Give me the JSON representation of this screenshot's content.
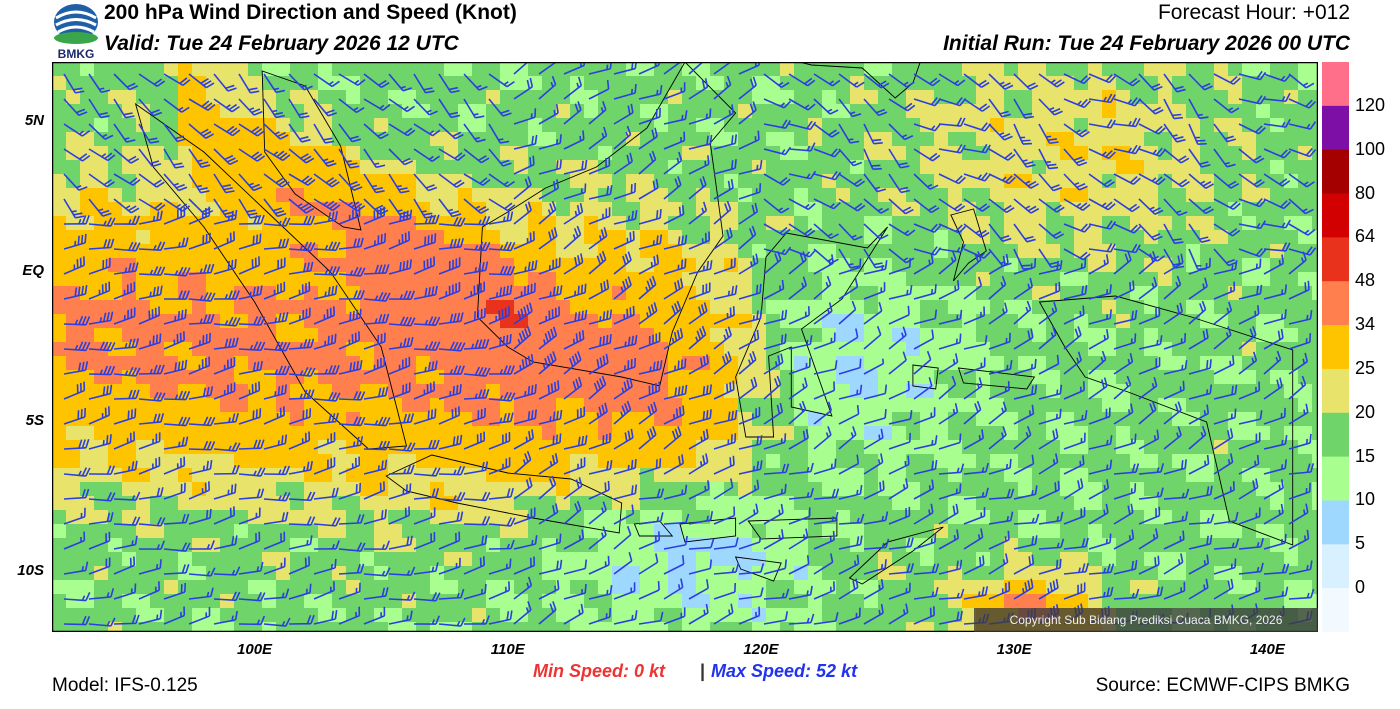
{
  "header": {
    "title": "200 hPa Wind Direction and Speed (Knot)",
    "valid": "Valid: Tue 24 February 2026 12 UTC",
    "forecast_hour": "Forecast Hour: +012",
    "initial_run": "Initial Run: Tue 24 February 2026 00 UTC"
  },
  "logo": {
    "text": "BMKG",
    "icon": "bmkg-logo-icon"
  },
  "map": {
    "lat_labels": [
      "5N",
      "EQ",
      "5S",
      "10S"
    ],
    "lat_values": [
      5,
      0,
      -5,
      -10
    ],
    "lon_labels": [
      "100E",
      "110E",
      "120E",
      "130E",
      "140E"
    ],
    "lon_values": [
      100,
      110,
      120,
      130,
      140
    ],
    "lon_range": [
      92,
      142
    ],
    "lat_range": [
      -12,
      7
    ],
    "copyright": "Copyright Sub Bidang Prediksi Cuaca BMKG, 2026",
    "barb_color": "#2b3fe0",
    "coast_color": "#000000"
  },
  "colorbar": {
    "labels": [
      "120",
      "100",
      "80",
      "64",
      "48",
      "34",
      "25",
      "20",
      "15",
      "10",
      "5",
      "0"
    ],
    "colors": [
      "#ff6f8a",
      "#7d0fa6",
      "#a50000",
      "#d20000",
      "#e8321c",
      "#ff7f4f",
      "#ffc400",
      "#e8e36a",
      "#6fd46a",
      "#a8ff8f",
      "#9fd8ff",
      "#d8f0ff",
      "#f2f9ff"
    ]
  },
  "footer": {
    "min_speed": "Min Speed:   0 kt",
    "max_speed": "Max Speed:  52 kt",
    "separator": "|",
    "model": "Model: IFS-0.125",
    "source": "Source: ECMWF-CIPS BMKG"
  }
}
